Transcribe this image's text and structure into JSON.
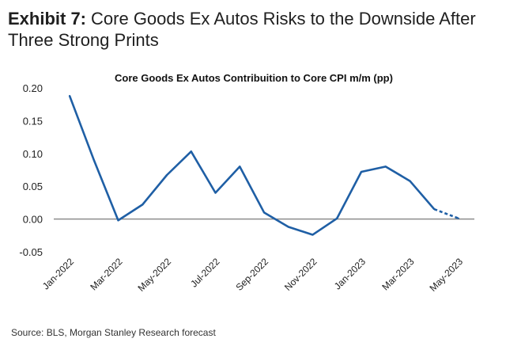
{
  "header": {
    "exhibit_label": "Exhibit 7:",
    "title": "Core Goods Ex Autos Risks to the Downside After Three Strong Prints"
  },
  "footer": {
    "source": "Source: BLS, Morgan Stanley Research forecast"
  },
  "colors": {
    "line": "#1f5fa5",
    "zero_line": "#8c8c8c"
  },
  "chart_data": {
    "type": "line",
    "title": "Core Goods Ex Autos Contribuition to Core CPI m/m (pp)",
    "xlabel": "",
    "ylabel": "",
    "ylim": [
      -0.05,
      0.2
    ],
    "yticks": [
      "0.20",
      "0.15",
      "0.10",
      "0.05",
      "0.00",
      "-0.05"
    ],
    "ytick_values": [
      0.2,
      0.15,
      0.1,
      0.05,
      0.0,
      -0.05
    ],
    "categories": [
      "Jan-2022",
      "Feb-2022",
      "Mar-2022",
      "Apr-2022",
      "May-2022",
      "Jun-2022",
      "Jul-2022",
      "Aug-2022",
      "Sep-2022",
      "Oct-2022",
      "Nov-2022",
      "Dec-2022",
      "Jan-2023",
      "Feb-2023",
      "Mar-2023",
      "Apr-2023",
      "May-2023"
    ],
    "xtick_labels": [
      "Jan-2022",
      "Mar-2022",
      "May-2022",
      "Jul-2022",
      "Sep-2022",
      "Nov-2022",
      "Jan-2023",
      "Mar-2023",
      "May-2023"
    ],
    "series": [
      {
        "style": "solid",
        "values": [
          0.188,
          0.09,
          -0.002,
          0.022,
          0.067,
          0.103,
          0.04,
          0.08,
          0.01,
          -0.012,
          -0.024,
          0.001,
          0.072,
          0.08,
          0.058,
          0.015,
          null
        ]
      },
      {
        "style": "dashed",
        "values": [
          null,
          null,
          null,
          null,
          null,
          null,
          null,
          null,
          null,
          null,
          null,
          null,
          null,
          null,
          null,
          0.015,
          0.001
        ]
      }
    ],
    "grid": false,
    "legend": "none"
  }
}
